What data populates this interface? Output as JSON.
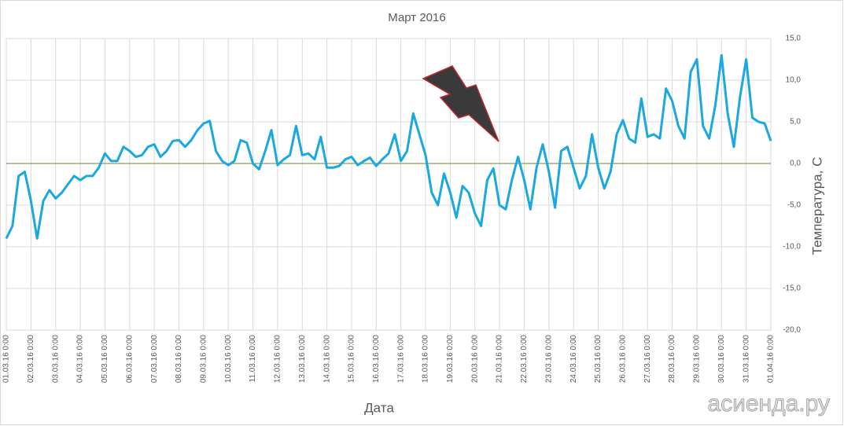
{
  "chart_data": {
    "type": "line",
    "title": "Март 2016",
    "x_label": "Дата",
    "y_label": "Температура, С",
    "watermark": "асиенда.ру",
    "color": "#1aa8e0",
    "zero_line_color": "#6b8a2a",
    "grid": true,
    "x": [
      "01.03.16 0:00",
      "01.03.16 6:00",
      "01.03.16 12:00",
      "01.03.16 18:00",
      "02.03.16 0:00",
      "02.03.16 6:00",
      "02.03.16 12:00",
      "02.03.16 18:00",
      "03.03.16 0:00",
      "03.03.16 6:00",
      "03.03.16 12:00",
      "03.03.16 18:00",
      "04.03.16 0:00",
      "04.03.16 6:00",
      "04.03.16 12:00",
      "04.03.16 18:00",
      "05.03.16 0:00",
      "05.03.16 6:00",
      "05.03.16 12:00",
      "05.03.16 18:00",
      "06.03.16 0:00",
      "06.03.16 6:00",
      "06.03.16 12:00",
      "06.03.16 18:00",
      "07.03.16 0:00",
      "07.03.16 6:00",
      "07.03.16 12:00",
      "07.03.16 18:00",
      "08.03.16 0:00",
      "08.03.16 6:00",
      "08.03.16 12:00",
      "08.03.16 18:00",
      "09.03.16 0:00",
      "09.03.16 6:00",
      "09.03.16 12:00",
      "09.03.16 18:00",
      "10.03.16 0:00",
      "10.03.16 6:00",
      "10.03.16 12:00",
      "10.03.16 18:00",
      "11.03.16 0:00",
      "11.03.16 6:00",
      "11.03.16 12:00",
      "11.03.16 18:00",
      "12.03.16 0:00",
      "12.03.16 6:00",
      "12.03.16 12:00",
      "12.03.16 18:00",
      "13.03.16 0:00",
      "13.03.16 6:00",
      "13.03.16 12:00",
      "13.03.16 18:00",
      "14.03.16 0:00",
      "14.03.16 6:00",
      "14.03.16 12:00",
      "14.03.16 18:00",
      "15.03.16 0:00",
      "15.03.16 6:00",
      "15.03.16 12:00",
      "15.03.16 18:00",
      "16.03.16 0:00",
      "16.03.16 6:00",
      "16.03.16 12:00",
      "16.03.16 18:00",
      "17.03.16 0:00",
      "17.03.16 6:00",
      "17.03.16 12:00",
      "17.03.16 18:00",
      "18.03.16 0:00",
      "18.03.16 6:00",
      "18.03.16 12:00",
      "18.03.16 18:00",
      "19.03.16 0:00",
      "19.03.16 6:00",
      "19.03.16 12:00",
      "19.03.16 18:00",
      "20.03.16 0:00",
      "20.03.16 6:00",
      "20.03.16 12:00",
      "20.03.16 18:00",
      "21.03.16 0:00",
      "21.03.16 6:00",
      "21.03.16 12:00",
      "21.03.16 18:00",
      "22.03.16 0:00",
      "22.03.16 6:00",
      "22.03.16 12:00",
      "22.03.16 18:00",
      "23.03.16 0:00",
      "23.03.16 6:00",
      "23.03.16 12:00",
      "23.03.16 18:00",
      "24.03.16 0:00",
      "24.03.16 6:00",
      "24.03.16 12:00",
      "24.03.16 18:00",
      "25.03.16 0:00",
      "25.03.16 6:00",
      "25.03.16 12:00",
      "25.03.16 18:00",
      "26.03.16 0:00",
      "26.03.16 6:00",
      "26.03.16 12:00",
      "26.03.16 18:00",
      "27.03.16 0:00",
      "27.03.16 6:00",
      "27.03.16 12:00",
      "27.03.16 18:00",
      "28.03.16 0:00",
      "28.03.16 6:00",
      "28.03.16 12:00",
      "28.03.16 18:00",
      "29.03.16 0:00",
      "29.03.16 6:00",
      "29.03.16 12:00",
      "29.03.16 18:00",
      "30.03.16 0:00",
      "30.03.16 6:00",
      "30.03.16 12:00",
      "30.03.16 18:00",
      "31.03.16 0:00",
      "31.03.16 6:00",
      "31.03.16 12:00",
      "31.03.16 18:00",
      "01.04.16 0:00"
    ],
    "values": [
      -9,
      -7.5,
      -1.5,
      -1,
      -4.5,
      -9,
      -4.5,
      -3.2,
      -4.2,
      -3.5,
      -2.5,
      -1.5,
      -2,
      -1.5,
      -1.5,
      -0.5,
      1.2,
      0.3,
      0.3,
      2,
      1.5,
      0.8,
      1,
      2,
      2.3,
      0.8,
      1.5,
      2.7,
      2.8,
      2,
      2.8,
      4,
      4.8,
      5.1,
      1.5,
      0.3,
      -0.2,
      0.3,
      2.8,
      2.5,
      0,
      -0.7,
      1.5,
      4,
      -0.2,
      0.5,
      1,
      4.5,
      1,
      1.2,
      0.5,
      3.2,
      -0.5,
      -0.5,
      -0.3,
      0.5,
      0.8,
      -0.2,
      0.3,
      0.7,
      -0.3,
      0.5,
      1.2,
      3.5,
      0.3,
      1.5,
      6,
      3.5,
      1,
      -3.5,
      -5,
      -1.2,
      -3.5,
      -6.5,
      -2.7,
      -3.5,
      -6,
      -7.5,
      -2,
      -0.6,
      -5,
      -5.5,
      -2,
      0.8,
      -2,
      -5.5,
      -0.5,
      2.3,
      -1,
      -5.3,
      1.5,
      2,
      -0.5,
      -3,
      -1.5,
      3.5,
      -0.5,
      -3,
      -1,
      3.5,
      5.2,
      3,
      2.5,
      7.8,
      3.2,
      3.5,
      3,
      9,
      7.5,
      4.5,
      3,
      11,
      12.5,
      4.5,
      3,
      7,
      13,
      6,
      2,
      8,
      12.5,
      5.5,
      5,
      4.8,
      2.7
    ],
    "xlim": [
      "01.03.16 0:00",
      "01.04.16 0:00"
    ],
    "xticks": [
      "01.03.16 0:00",
      "02.03.16 0:00",
      "03.03.16 0:00",
      "04.03.16 0:00",
      "05.03.16 0:00",
      "06.03.16 0:00",
      "07.03.16 0:00",
      "08.03.16 0:00",
      "09.03.16 0:00",
      "10.03.16 0:00",
      "11.03.16 0:00",
      "12.03.16 0:00",
      "13.03.16 0:00",
      "14.03.16 0:00",
      "15.03.16 0:00",
      "16.03.16 0:00",
      "17.03.16 0:00",
      "18.03.16 0:00",
      "19.03.16 0:00",
      "20.03.16 0:00",
      "21.03.16 0:00",
      "22.03.16 0:00",
      "23.03.16 0:00",
      "24.03.16 0:00",
      "25.03.16 0:00",
      "26.03.16 0:00",
      "27.03.16 0:00",
      "28.03.16 0:00",
      "29.03.16 0:00",
      "30.03.16 0:00",
      "31.03.16 0:00",
      "01.04.16 0:00"
    ],
    "ylim": [
      -20,
      15
    ],
    "yticks": [
      {
        "value": 15,
        "label": "15,0"
      },
      {
        "value": 10,
        "label": "10,0"
      },
      {
        "value": 5,
        "label": "5,0"
      },
      {
        "value": 0,
        "label": "0,0"
      },
      {
        "value": -5,
        "label": "-5,0"
      },
      {
        "value": -10,
        "label": "-10,0"
      },
      {
        "value": -15,
        "label": "-15,0"
      },
      {
        "value": -20,
        "label": "-20,0"
      }
    ]
  }
}
